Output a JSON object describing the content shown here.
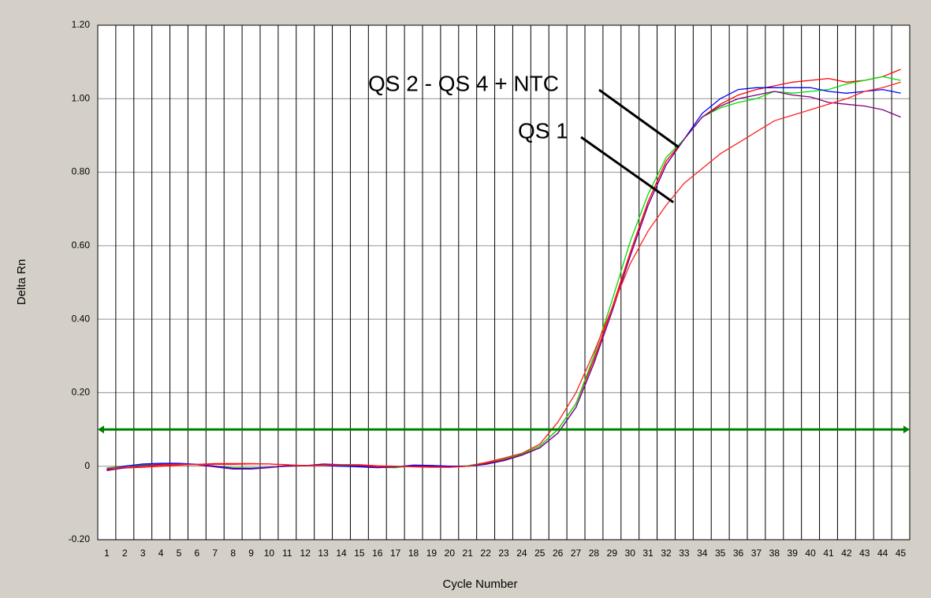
{
  "chart_data": {
    "type": "line",
    "y_label": "Delta Rn",
    "x_label": "Cycle Number",
    "x": [
      1,
      2,
      3,
      4,
      5,
      6,
      7,
      8,
      9,
      10,
      11,
      12,
      13,
      14,
      15,
      16,
      17,
      18,
      19,
      20,
      21,
      22,
      23,
      24,
      25,
      26,
      27,
      28,
      29,
      30,
      31,
      32,
      33,
      34,
      35,
      36,
      37,
      38,
      39,
      40,
      41,
      42,
      43,
      44,
      45
    ],
    "xlim": [
      0.5,
      45.5
    ],
    "xticks": [
      1,
      2,
      3,
      4,
      5,
      6,
      7,
      8,
      9,
      10,
      11,
      12,
      13,
      14,
      15,
      16,
      17,
      18,
      19,
      20,
      21,
      22,
      23,
      24,
      25,
      26,
      27,
      28,
      29,
      30,
      31,
      32,
      33,
      34,
      35,
      36,
      37,
      38,
      39,
      40,
      41,
      42,
      43,
      44,
      45
    ],
    "ylim": [
      -0.2,
      1.2
    ],
    "yticks": [
      {
        "value": -0.2,
        "label": "-0.20"
      },
      0,
      {
        "value": 0.2,
        "label": "0.20"
      },
      {
        "value": 0.4,
        "label": "0.40"
      },
      {
        "value": 0.6,
        "label": "0.60"
      },
      {
        "value": 0.8,
        "label": "0.80"
      },
      {
        "value": 1.0,
        "label": "1.00"
      },
      {
        "value": 1.2,
        "label": "1.20"
      }
    ],
    "grid": true,
    "threshold": 0.1,
    "threshold_color": "#008000",
    "series": [
      {
        "color": "#ff0000",
        "values": [
          -0.01,
          -0.005,
          -0.003,
          0,
          0.003,
          0.005,
          0.007,
          0.007,
          0.007,
          0.006,
          0.003,
          0.002,
          0.004,
          0.004,
          0.003,
          0,
          -0.002,
          0,
          -0.002,
          -0.003,
          0,
          0.008,
          0.018,
          0.032,
          0.055,
          0.1,
          0.17,
          0.29,
          0.43,
          0.58,
          0.72,
          0.83,
          0.89,
          0.95,
          0.985,
          1.01,
          1.025,
          1.035,
          1.045,
          1.05,
          1.055,
          1.045,
          1.05,
          1.06,
          1.08
        ]
      },
      {
        "color": "#00dd00",
        "values": [
          -0.005,
          0,
          0.004,
          0.007,
          0.006,
          0.004,
          0,
          -0.004,
          -0.005,
          -0.003,
          0,
          0.001,
          0.003,
          0.002,
          0,
          -0.003,
          -0.004,
          0.001,
          0.002,
          -0.001,
          0.001,
          0.01,
          0.02,
          0.033,
          0.055,
          0.1,
          0.17,
          0.3,
          0.45,
          0.61,
          0.74,
          0.84,
          0.89,
          0.95,
          0.975,
          0.99,
          1.0,
          1.02,
          1.015,
          1.02,
          1.025,
          1.04,
          1.05,
          1.06,
          1.05
        ]
      },
      {
        "color": "#0000ff",
        "values": [
          -0.008,
          0,
          0.006,
          0.008,
          0.008,
          0.005,
          0,
          -0.006,
          -0.006,
          -0.003,
          0,
          0.002,
          0.002,
          0,
          -0.002,
          -0.004,
          -0.002,
          0.003,
          0.002,
          0,
          0,
          0.005,
          0.015,
          0.03,
          0.05,
          0.09,
          0.16,
          0.28,
          0.42,
          0.57,
          0.71,
          0.82,
          0.89,
          0.96,
          1.0,
          1.025,
          1.03,
          1.03,
          1.03,
          1.03,
          1.02,
          1.015,
          1.02,
          1.025,
          1.015
        ]
      },
      {
        "color": "#800080",
        "values": [
          -0.012,
          -0.004,
          0.002,
          0.005,
          0.006,
          0.004,
          -0.002,
          -0.008,
          -0.008,
          -0.004,
          0.001,
          0.001,
          0.006,
          0.004,
          0.001,
          -0.003,
          -0.002,
          0.001,
          0,
          -0.002,
          0,
          0.006,
          0.016,
          0.03,
          0.05,
          0.09,
          0.16,
          0.28,
          0.42,
          0.57,
          0.71,
          0.82,
          0.89,
          0.95,
          0.98,
          1.0,
          1.01,
          1.02,
          1.01,
          1.005,
          0.99,
          0.985,
          0.98,
          0.97,
          0.95
        ]
      },
      {
        "color": "#ff2020",
        "values": [
          -0.006,
          -0.003,
          -0.002,
          0.003,
          0.005,
          0.004,
          0.005,
          0.005,
          0.006,
          0.006,
          0.004,
          0.001,
          0.002,
          0.004,
          0.004,
          0.001,
          0,
          -0.002,
          -0.003,
          -0.003,
          0,
          0.01,
          0.022,
          0.035,
          0.06,
          0.12,
          0.2,
          0.31,
          0.43,
          0.55,
          0.64,
          0.71,
          0.77,
          0.81,
          0.85,
          0.88,
          0.91,
          0.94,
          0.955,
          0.97,
          0.985,
          1.0,
          1.02,
          1.03,
          1.045
        ]
      }
    ],
    "annotations": [
      {
        "text": "QS 2 - QS 4 + NTC",
        "point": [
          32.7,
          0.868
        ]
      },
      {
        "text": "QS 1",
        "point": [
          32.4,
          0.718
        ]
      }
    ]
  }
}
